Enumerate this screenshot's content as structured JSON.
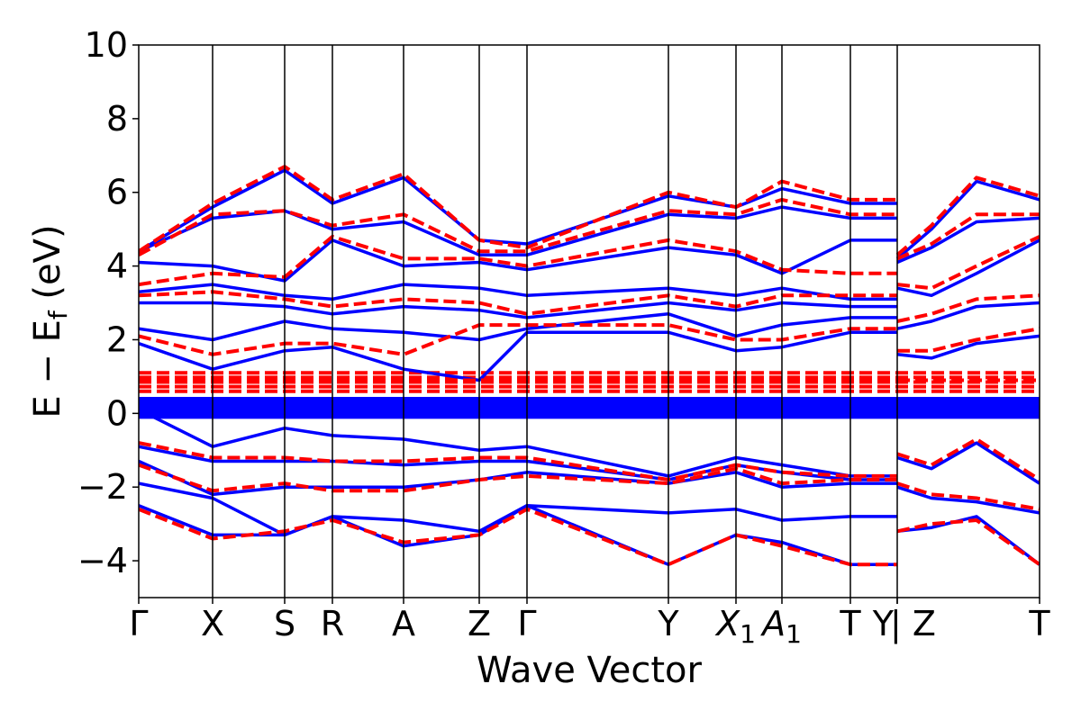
{
  "chart_data": {
    "type": "line",
    "xlabel": "Wave Vector",
    "ylabel_parts": {
      "main": "E − E",
      "sub": "f",
      "unit": " (eV)"
    },
    "ylim": [
      -5,
      10
    ],
    "yticks": [
      "−4",
      "−2",
      "0",
      "2",
      "4",
      "6",
      "8",
      "10"
    ],
    "ytick_values": [
      -4,
      -2,
      0,
      2,
      4,
      6,
      8,
      10
    ],
    "grid": false,
    "colors": {
      "solid": "#0000ff",
      "dashed": "#ff0000",
      "axis": "#000000"
    },
    "kpoints": [
      {
        "label": "Γ",
        "x": 0.0
      },
      {
        "label": "X",
        "x": 0.082
      },
      {
        "label": "S",
        "x": 0.162
      },
      {
        "label": "R",
        "x": 0.215
      },
      {
        "label": "A",
        "x": 0.294
      },
      {
        "label": "Z",
        "x": 0.378
      },
      {
        "label": "Γ",
        "x": 0.431
      },
      {
        "label": "Y",
        "x": 0.588
      },
      {
        "label": "X",
        "sub": "1",
        "italic": true,
        "x": 0.663
      },
      {
        "label": "A",
        "sub": "1",
        "italic": true,
        "x": 0.714
      },
      {
        "label": "T",
        "x": 0.79
      },
      {
        "label": "Y",
        "x": 0.842
      },
      {
        "label": "Z",
        "x": 0.842,
        "prefix": "| "
      },
      {
        "label": "T",
        "x": 1.0
      }
    ],
    "break_at": 0.842,
    "series": [
      {
        "style": "solid",
        "x": [
          0.0,
          0.082,
          0.162,
          0.215,
          0.294,
          0.378,
          0.431,
          0.588,
          0.663,
          0.714,
          0.79,
          0.842
        ],
        "y": [
          -2.5,
          -3.3,
          -3.3,
          -2.8,
          -3.6,
          -3.3,
          -2.5,
          -4.1,
          -3.3,
          -3.5,
          -4.1,
          -4.1
        ]
      },
      {
        "style": "solid",
        "x": [
          0.0,
          0.082,
          0.162,
          0.215,
          0.294,
          0.378,
          0.431,
          0.588,
          0.663,
          0.714,
          0.79,
          0.842
        ],
        "y": [
          -1.9,
          -2.3,
          -3.3,
          -2.8,
          -2.9,
          -3.2,
          -2.5,
          -2.7,
          -2.6,
          -2.9,
          -2.8,
          -2.8
        ]
      },
      {
        "style": "solid",
        "x": [
          0.0,
          0.082,
          0.162,
          0.215,
          0.294,
          0.378,
          0.431,
          0.588,
          0.663,
          0.714,
          0.79,
          0.842
        ],
        "y": [
          -1.3,
          -2.2,
          -2.0,
          -2.0,
          -2.0,
          -1.8,
          -1.6,
          -1.9,
          -1.6,
          -2.0,
          -1.9,
          -1.9
        ]
      },
      {
        "style": "solid",
        "x": [
          0.0,
          0.082,
          0.162,
          0.215,
          0.294,
          0.378,
          0.431,
          0.588,
          0.663,
          0.714,
          0.79,
          0.842
        ],
        "y": [
          -0.9,
          -1.3,
          -1.3,
          -1.3,
          -1.4,
          -1.3,
          -1.3,
          -1.8,
          -1.4,
          -1.6,
          -1.8,
          -1.8
        ]
      },
      {
        "style": "solid",
        "x": [
          0.0,
          0.082,
          0.162,
          0.215,
          0.294,
          0.378,
          0.431,
          0.588,
          0.663,
          0.714,
          0.79,
          0.842
        ],
        "y": [
          0.1,
          -0.9,
          -0.4,
          -0.6,
          -0.7,
          -1.0,
          -0.9,
          -1.7,
          -1.2,
          -1.4,
          -1.7,
          -1.7
        ]
      },
      {
        "style": "solid",
        "x": [
          0.0,
          0.082,
          0.162,
          0.215,
          0.294,
          0.378,
          0.431,
          0.588,
          0.663,
          0.714,
          0.79,
          0.842
        ],
        "y": [
          0.2,
          0.2,
          0.2,
          0.2,
          0.2,
          0.2,
          0.2,
          0.2,
          0.2,
          0.2,
          0.2,
          0.2
        ]
      },
      {
        "style": "solid",
        "x": [
          0.0,
          0.082,
          0.162,
          0.215,
          0.294,
          0.378,
          0.431,
          0.588,
          0.663,
          0.714,
          0.79,
          0.842
        ],
        "y": [
          1.9,
          1.2,
          1.7,
          1.8,
          1.2,
          0.9,
          2.2,
          2.2,
          1.7,
          1.8,
          2.2,
          2.2
        ]
      },
      {
        "style": "solid",
        "x": [
          0.0,
          0.082,
          0.162,
          0.215,
          0.294,
          0.378,
          0.431,
          0.588,
          0.663,
          0.714,
          0.79,
          0.842
        ],
        "y": [
          2.3,
          2.0,
          2.5,
          2.3,
          2.2,
          2.0,
          2.3,
          2.7,
          2.1,
          2.4,
          2.6,
          2.6
        ]
      },
      {
        "style": "solid",
        "x": [
          0.0,
          0.082,
          0.162,
          0.215,
          0.294,
          0.378,
          0.431,
          0.588,
          0.663,
          0.714,
          0.79,
          0.842
        ],
        "y": [
          3.0,
          3.0,
          2.9,
          2.7,
          2.9,
          2.8,
          2.6,
          3.0,
          2.8,
          3.0,
          2.9,
          2.9
        ]
      },
      {
        "style": "solid",
        "x": [
          0.0,
          0.082,
          0.162,
          0.215,
          0.294,
          0.378,
          0.431,
          0.588,
          0.663,
          0.714,
          0.79,
          0.842
        ],
        "y": [
          3.3,
          3.5,
          3.2,
          3.1,
          3.5,
          3.4,
          3.2,
          3.4,
          3.2,
          3.4,
          3.1,
          3.1
        ]
      },
      {
        "style": "solid",
        "x": [
          0.0,
          0.082,
          0.162,
          0.215,
          0.294,
          0.378,
          0.431,
          0.588,
          0.663,
          0.714,
          0.79,
          0.842
        ],
        "y": [
          4.1,
          4.0,
          3.6,
          4.7,
          4.0,
          4.1,
          3.9,
          4.5,
          4.3,
          3.8,
          4.7,
          4.7
        ]
      },
      {
        "style": "solid",
        "x": [
          0.0,
          0.082,
          0.162,
          0.215,
          0.294,
          0.378,
          0.431,
          0.588,
          0.663,
          0.714,
          0.79,
          0.842
        ],
        "y": [
          4.4,
          5.3,
          5.5,
          5.0,
          5.2,
          4.3,
          4.3,
          5.4,
          5.3,
          5.6,
          5.3,
          5.3
        ]
      },
      {
        "style": "solid",
        "x": [
          0.0,
          0.082,
          0.162,
          0.215,
          0.294,
          0.378,
          0.431,
          0.588,
          0.663,
          0.714,
          0.79,
          0.842
        ],
        "y": [
          4.4,
          5.6,
          6.6,
          5.7,
          6.4,
          4.7,
          4.6,
          5.9,
          5.6,
          6.1,
          5.7,
          5.7
        ]
      },
      {
        "style": "solid",
        "x": [
          0.842,
          0.88,
          0.93,
          1.0
        ],
        "y": [
          -3.2,
          -3.1,
          -2.8,
          -4.1
        ]
      },
      {
        "style": "solid",
        "x": [
          0.842,
          0.88,
          0.93,
          1.0
        ],
        "y": [
          -2.0,
          -2.3,
          -2.4,
          -2.7
        ]
      },
      {
        "style": "solid",
        "x": [
          0.842,
          0.88,
          0.93,
          1.0
        ],
        "y": [
          -1.2,
          -1.5,
          -0.8,
          -1.9
        ]
      },
      {
        "style": "solid",
        "x": [
          0.842,
          0.88,
          0.93,
          1.0
        ],
        "y": [
          0.2,
          0.2,
          0.2,
          0.2
        ]
      },
      {
        "style": "solid",
        "x": [
          0.842,
          0.88,
          0.93,
          1.0
        ],
        "y": [
          1.6,
          1.5,
          1.9,
          2.1
        ]
      },
      {
        "style": "solid",
        "x": [
          0.842,
          0.88,
          0.93,
          1.0
        ],
        "y": [
          2.3,
          2.5,
          2.9,
          3.0
        ]
      },
      {
        "style": "solid",
        "x": [
          0.842,
          0.88,
          0.93,
          1.0
        ],
        "y": [
          3.4,
          3.2,
          3.8,
          4.7
        ]
      },
      {
        "style": "solid",
        "x": [
          0.842,
          0.88,
          0.93,
          1.0
        ],
        "y": [
          4.1,
          4.5,
          5.2,
          5.3
        ]
      },
      {
        "style": "solid",
        "x": [
          0.842,
          0.88,
          0.93,
          1.0
        ],
        "y": [
          4.2,
          5.0,
          6.3,
          5.8
        ]
      },
      {
        "style": "dashed",
        "x": [
          0.0,
          0.082,
          0.162,
          0.215,
          0.294,
          0.378,
          0.431,
          0.588,
          0.663,
          0.714,
          0.79,
          0.842
        ],
        "y": [
          -2.6,
          -3.4,
          -3.2,
          -2.9,
          -3.5,
          -3.3,
          -2.6,
          -4.1,
          -3.3,
          -3.6,
          -4.1,
          -4.1
        ]
      },
      {
        "style": "dashed",
        "x": [
          0.0,
          0.082,
          0.162,
          0.215,
          0.294,
          0.378,
          0.431,
          0.588,
          0.663,
          0.714,
          0.79,
          0.842
        ],
        "y": [
          -1.4,
          -2.1,
          -1.9,
          -2.1,
          -2.1,
          -1.8,
          -1.7,
          -1.9,
          -1.5,
          -1.9,
          -1.8,
          -1.8
        ]
      },
      {
        "style": "dashed",
        "x": [
          0.0,
          0.082,
          0.162,
          0.215,
          0.294,
          0.378,
          0.431,
          0.588,
          0.663,
          0.714,
          0.79,
          0.842
        ],
        "y": [
          -0.8,
          -1.2,
          -1.2,
          -1.3,
          -1.3,
          -1.2,
          -1.2,
          -1.8,
          -1.4,
          -1.6,
          -1.7,
          -1.7
        ]
      },
      {
        "style": "dashed",
        "x": [
          0.0,
          0.082,
          0.162,
          0.215,
          0.294,
          0.378,
          0.431,
          0.588,
          0.663,
          0.714,
          0.79,
          0.842
        ],
        "y": [
          0.9,
          0.9,
          0.9,
          0.9,
          0.9,
          0.9,
          0.9,
          0.9,
          0.9,
          0.9,
          0.9,
          0.9
        ]
      },
      {
        "style": "dashed",
        "x": [
          0.0,
          0.082,
          0.162,
          0.215,
          0.294,
          0.378,
          0.431,
          0.588,
          0.663,
          0.714,
          0.79,
          0.842
        ],
        "y": [
          2.1,
          1.6,
          1.9,
          1.9,
          1.6,
          2.4,
          2.4,
          2.4,
          2.0,
          2.0,
          2.3,
          2.3
        ]
      },
      {
        "style": "dashed",
        "x": [
          0.0,
          0.082,
          0.162,
          0.215,
          0.294,
          0.378,
          0.431,
          0.588,
          0.663,
          0.714,
          0.79,
          0.842
        ],
        "y": [
          3.2,
          3.3,
          3.1,
          2.9,
          3.1,
          3.0,
          2.7,
          3.2,
          2.9,
          3.2,
          3.2,
          3.2
        ]
      },
      {
        "style": "dashed",
        "x": [
          0.0,
          0.082,
          0.162,
          0.215,
          0.294,
          0.378,
          0.431,
          0.588,
          0.663,
          0.714,
          0.79,
          0.842
        ],
        "y": [
          3.5,
          3.8,
          3.7,
          4.8,
          4.2,
          4.2,
          4.0,
          4.7,
          4.4,
          3.9,
          3.8,
          3.8
        ]
      },
      {
        "style": "dashed",
        "x": [
          0.0,
          0.082,
          0.162,
          0.215,
          0.294,
          0.378,
          0.431,
          0.588,
          0.663,
          0.714,
          0.79,
          0.842
        ],
        "y": [
          4.3,
          5.4,
          5.5,
          5.1,
          5.4,
          4.4,
          4.4,
          5.5,
          5.4,
          5.8,
          5.4,
          5.4
        ]
      },
      {
        "style": "dashed",
        "x": [
          0.0,
          0.082,
          0.162,
          0.215,
          0.294,
          0.378,
          0.431,
          0.588,
          0.663,
          0.714,
          0.79,
          0.842
        ],
        "y": [
          4.4,
          5.7,
          6.7,
          5.8,
          6.5,
          4.7,
          4.5,
          6.0,
          5.6,
          6.3,
          5.8,
          5.8
        ]
      },
      {
        "style": "dashed",
        "x": [
          0.842,
          0.88,
          0.93,
          1.0
        ],
        "y": [
          -3.2,
          -3.0,
          -2.9,
          -4.1
        ]
      },
      {
        "style": "dashed",
        "x": [
          0.842,
          0.88,
          0.93,
          1.0
        ],
        "y": [
          -1.9,
          -2.2,
          -2.3,
          -2.6
        ]
      },
      {
        "style": "dashed",
        "x": [
          0.842,
          0.88,
          0.93,
          1.0
        ],
        "y": [
          -1.1,
          -1.4,
          -0.7,
          -1.8
        ]
      },
      {
        "style": "dashed",
        "x": [
          0.842,
          0.88,
          0.93,
          1.0
        ],
        "y": [
          0.9,
          0.9,
          0.9,
          0.9
        ]
      },
      {
        "style": "dashed",
        "x": [
          0.842,
          0.88,
          0.93,
          1.0
        ],
        "y": [
          1.7,
          1.7,
          2.0,
          2.3
        ]
      },
      {
        "style": "dashed",
        "x": [
          0.842,
          0.88,
          0.93,
          1.0
        ],
        "y": [
          2.5,
          2.7,
          3.1,
          3.2
        ]
      },
      {
        "style": "dashed",
        "x": [
          0.842,
          0.88,
          0.93,
          1.0
        ],
        "y": [
          3.5,
          3.4,
          4.0,
          4.8
        ]
      },
      {
        "style": "dashed",
        "x": [
          0.842,
          0.88,
          0.93,
          1.0
        ],
        "y": [
          4.2,
          4.6,
          5.4,
          5.4
        ]
      },
      {
        "style": "dashed",
        "x": [
          0.842,
          0.88,
          0.93,
          1.0
        ],
        "y": [
          4.3,
          5.1,
          6.4,
          5.9
        ]
      }
    ],
    "bands": [
      {
        "style": "solid",
        "x": [
          0.0,
          1.0
        ],
        "y_low": -0.1,
        "y_high": 0.4,
        "note": "dense flat bands near Fermi level"
      },
      {
        "style": "dashed",
        "x": [
          0.0,
          1.0
        ],
        "y_low": 0.6,
        "y_high": 1.1,
        "note": "dense flat bands"
      }
    ]
  }
}
